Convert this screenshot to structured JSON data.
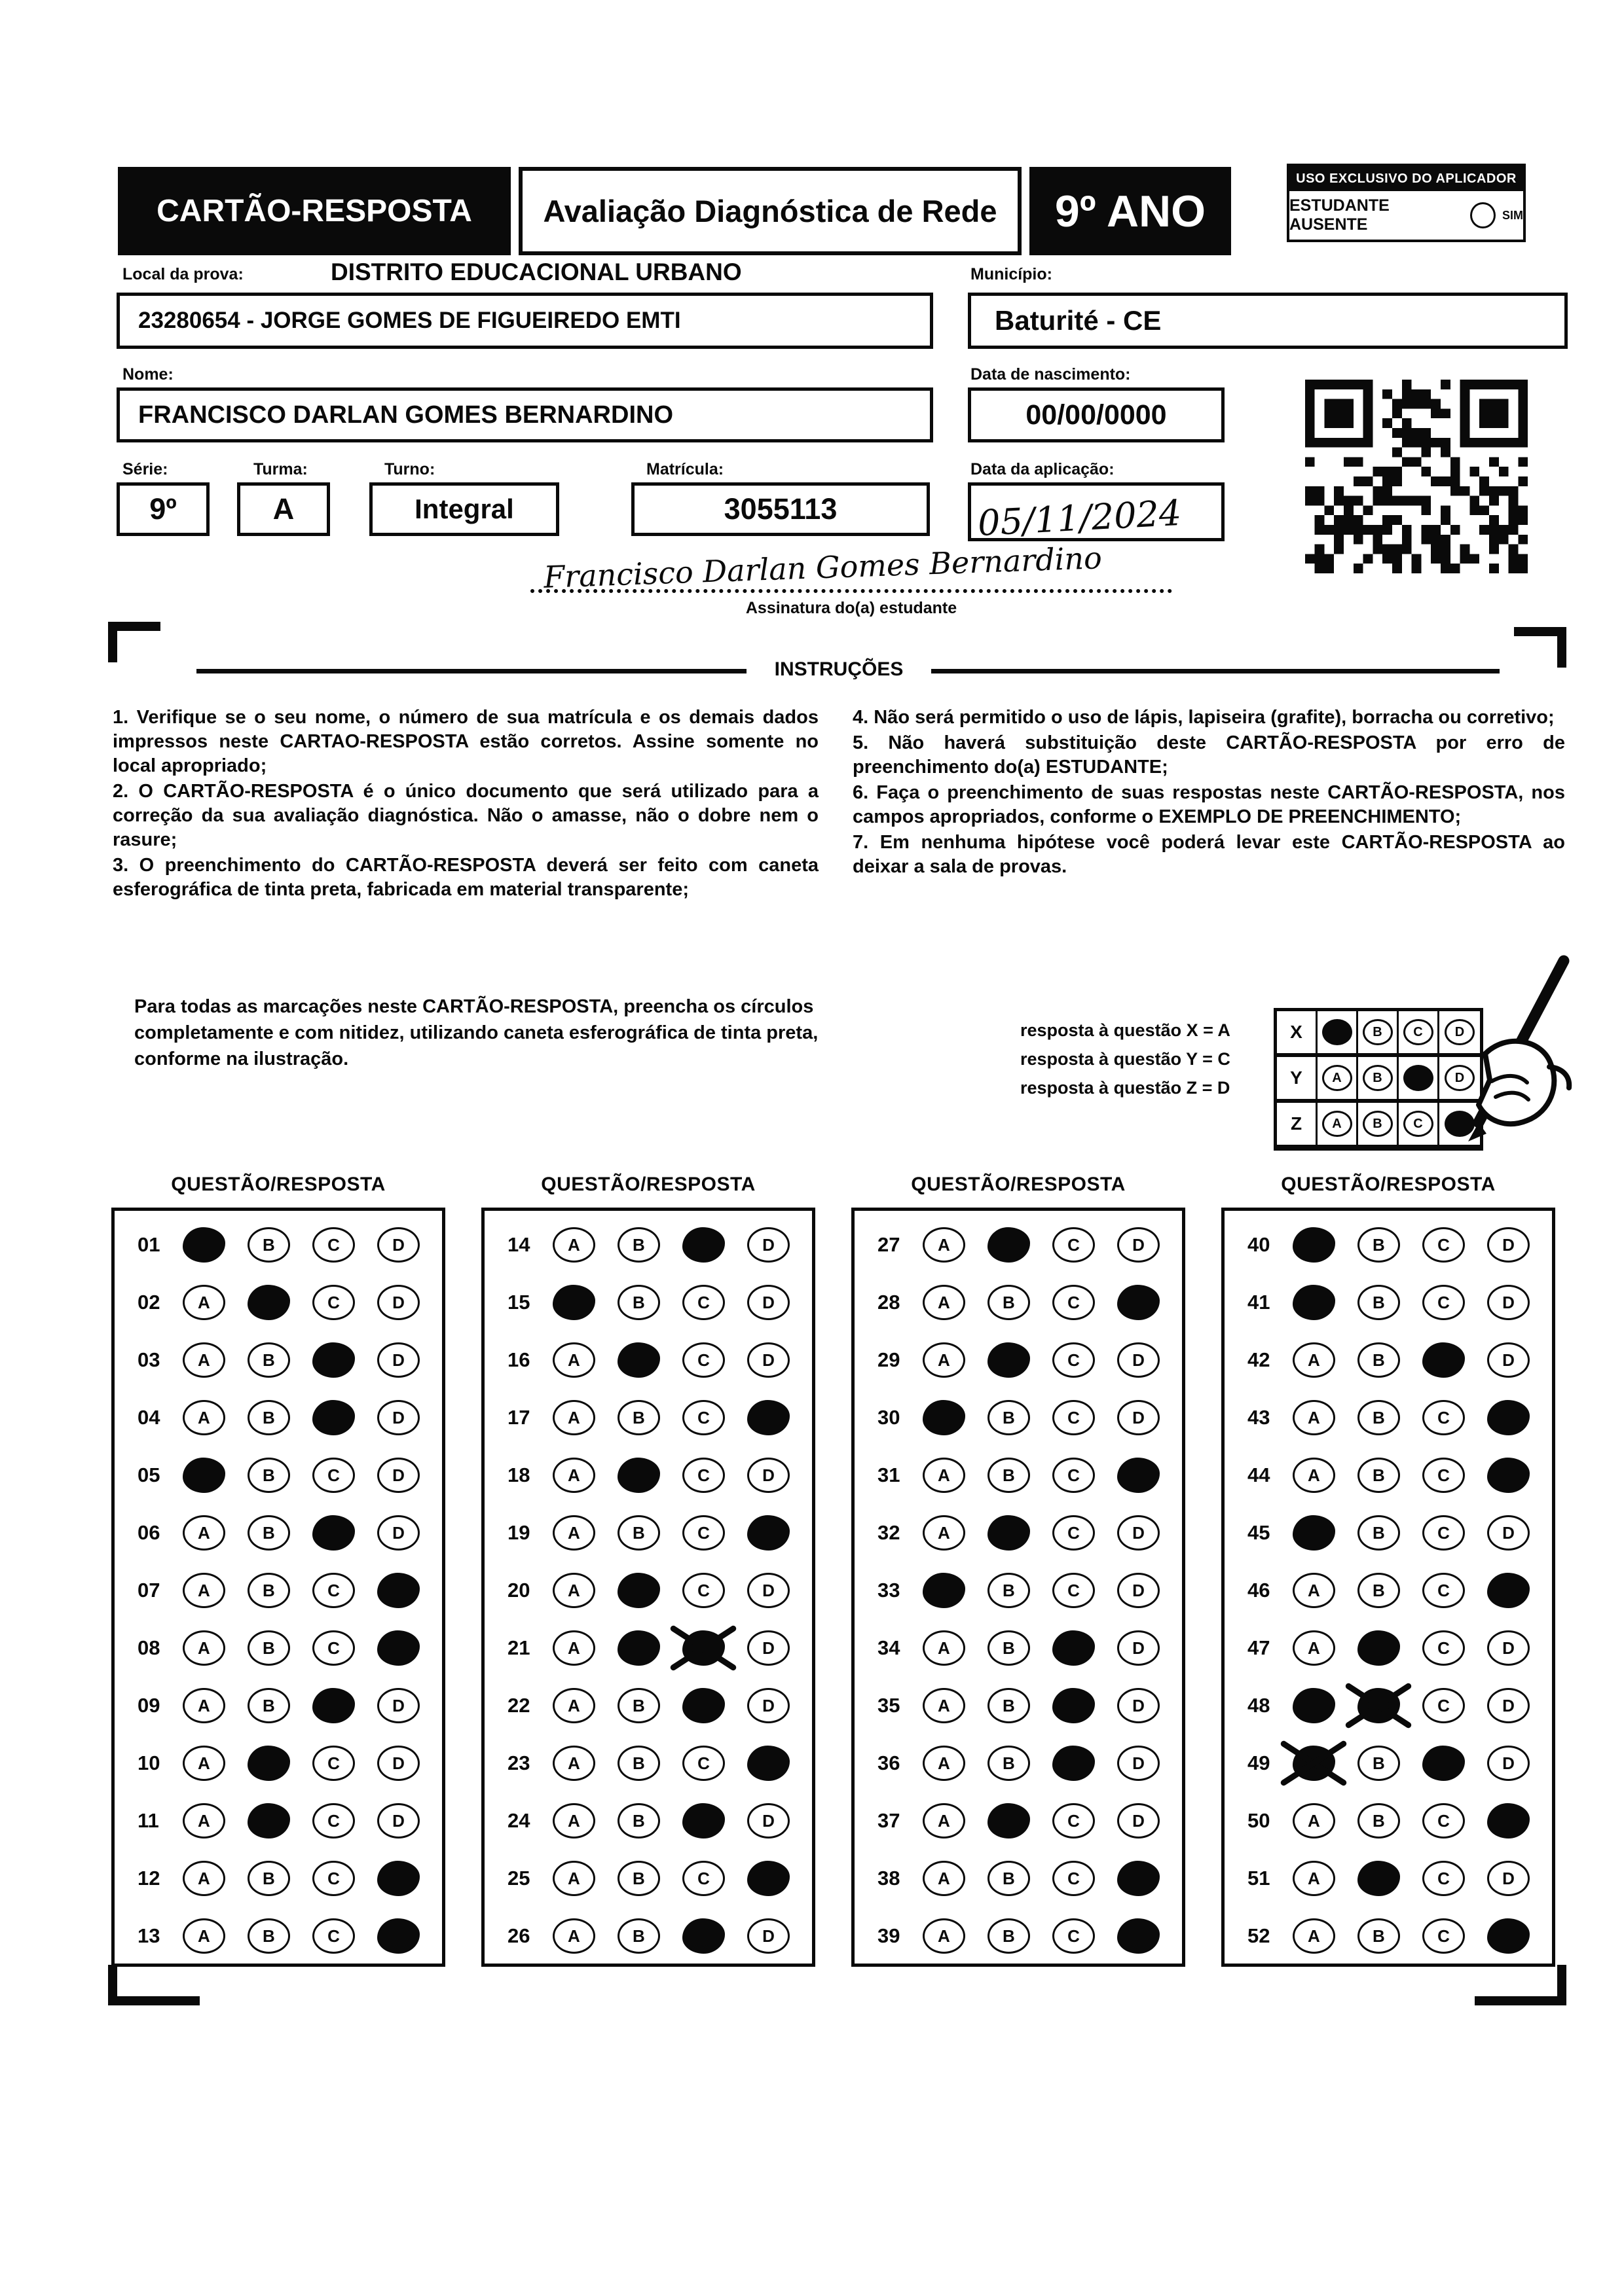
{
  "colors": {
    "ink": "#0a0a0a",
    "paper": "#ffffff"
  },
  "header": {
    "card_title": "CARTÃO-RESPOSTA",
    "exam_title": "Avaliação Diagnóstica de Rede",
    "grade": "9º ANO",
    "applicator_box_title": "USO EXCLUSIVO DO APLICADOR",
    "absent_label": "ESTUDANTE AUSENTE",
    "absent_option": "SIM"
  },
  "fields": {
    "local_label": "Local da prova:",
    "local_value": "DISTRITO EDUCACIONAL URBANO",
    "school_value": "23280654 - JORGE GOMES DE FIGUEIREDO EMTI",
    "municipio_label": "Município:",
    "municipio_value": "Baturité - CE",
    "nome_label": "Nome:",
    "nome_value": "FRANCISCO DARLAN GOMES BERNARDINO",
    "nascimento_label": "Data de nascimento:",
    "nascimento_value": "00/00/0000",
    "serie_label": "Série:",
    "serie_value": "9º",
    "turma_label": "Turma:",
    "turma_value": "A",
    "turno_label": "Turno:",
    "turno_value": "Integral",
    "matricula_label": "Matrícula:",
    "matricula_value": "3055113",
    "aplicacao_label": "Data da aplicação:",
    "aplicacao_value": "05/11/2024",
    "assinatura_value": "Francisco Darlan Gomes Bernardino",
    "assinatura_label": "Assinatura do(a) estudante"
  },
  "instructions": {
    "title": "INSTRUÇÕES",
    "left": [
      "1. Verifique se o seu nome, o número de sua matrícula e os demais dados impressos neste CARTAO-RESPOSTA estão corretos. Assine somente no local apropriado;",
      "2. O CARTÃO-RESPOSTA é o único documento que será utilizado para a correção da sua avaliação diagnóstica. Não o amasse, não o dobre nem o rasure;",
      "3. O preenchimento do CARTÃO-RESPOSTA deverá ser feito com caneta esferográfica de tinta preta, fabricada em material transparente;"
    ],
    "right": [
      "4. Não será permitido o uso de lápis, lapiseira (grafite), borracha ou corretivo;",
      "5. Não haverá substituição deste CARTÃO-RESPOSTA por erro de preenchimento do(a) ESTUDANTE;",
      "6. Faça o preenchimento de suas respostas neste CARTÃO-RESPOSTA, nos campos apropriados, conforme o EXEMPLO DE PREENCHIMENTO;",
      "7. Em nenhuma hipótese você poderá levar este CARTÃO-RESPOSTA ao deixar a sala de provas."
    ]
  },
  "example": {
    "text": "Para todas as marcações neste CARTÃO-RESPOSTA, preencha os círculos completamente e com nitidez, utilizando caneta esferográfica de tinta preta, conforme na ilustração.",
    "legend": [
      "resposta à questão X = A",
      "resposta à questão Y = C",
      "resposta à questão Z = D"
    ],
    "rows": [
      {
        "label": "X",
        "filled": "A"
      },
      {
        "label": "Y",
        "filled": "C"
      },
      {
        "label": "Z",
        "filled": "D"
      }
    ]
  },
  "answers": {
    "column_header": "QUESTÃO/RESPOSTA",
    "options": [
      "A",
      "B",
      "C",
      "D"
    ],
    "columns": [
      [
        {
          "q": "01",
          "marked": "A"
        },
        {
          "q": "02",
          "marked": "B"
        },
        {
          "q": "03",
          "marked": "C"
        },
        {
          "q": "04",
          "marked": "C"
        },
        {
          "q": "05",
          "marked": "A"
        },
        {
          "q": "06",
          "marked": "C"
        },
        {
          "q": "07",
          "marked": "D"
        },
        {
          "q": "08",
          "marked": "D"
        },
        {
          "q": "09",
          "marked": "C"
        },
        {
          "q": "10",
          "marked": "B"
        },
        {
          "q": "11",
          "marked": "B"
        },
        {
          "q": "12",
          "marked": "D"
        },
        {
          "q": "13",
          "marked": "D"
        }
      ],
      [
        {
          "q": "14",
          "marked": "C"
        },
        {
          "q": "15",
          "marked": "A"
        },
        {
          "q": "16",
          "marked": "B"
        },
        {
          "q": "17",
          "marked": "D"
        },
        {
          "q": "18",
          "marked": "B"
        },
        {
          "q": "19",
          "marked": "D"
        },
        {
          "q": "20",
          "marked": "B"
        },
        {
          "q": "21",
          "marked": "B",
          "crossed": "C"
        },
        {
          "q": "22",
          "marked": "C"
        },
        {
          "q": "23",
          "marked": "D"
        },
        {
          "q": "24",
          "marked": "C"
        },
        {
          "q": "25",
          "marked": "D"
        },
        {
          "q": "26",
          "marked": "C"
        }
      ],
      [
        {
          "q": "27",
          "marked": "B"
        },
        {
          "q": "28",
          "marked": "D"
        },
        {
          "q": "29",
          "marked": "B"
        },
        {
          "q": "30",
          "marked": "A"
        },
        {
          "q": "31",
          "marked": "D"
        },
        {
          "q": "32",
          "marked": "B"
        },
        {
          "q": "33",
          "marked": "A"
        },
        {
          "q": "34",
          "marked": "C"
        },
        {
          "q": "35",
          "marked": "C"
        },
        {
          "q": "36",
          "marked": "C"
        },
        {
          "q": "37",
          "marked": "B"
        },
        {
          "q": "38",
          "marked": "D"
        },
        {
          "q": "39",
          "marked": "D"
        }
      ],
      [
        {
          "q": "40",
          "marked": "A"
        },
        {
          "q": "41",
          "marked": "A"
        },
        {
          "q": "42",
          "marked": "C"
        },
        {
          "q": "43",
          "marked": "D"
        },
        {
          "q": "44",
          "marked": "D"
        },
        {
          "q": "45",
          "marked": "A"
        },
        {
          "q": "46",
          "marked": "D"
        },
        {
          "q": "47",
          "marked": "B"
        },
        {
          "q": "48",
          "marked": "A",
          "crossed": "B"
        },
        {
          "q": "49",
          "marked": "C",
          "crossed": "A"
        },
        {
          "q": "50",
          "marked": "D"
        },
        {
          "q": "51",
          "marked": "B"
        },
        {
          "q": "52",
          "marked": "D"
        }
      ]
    ]
  }
}
